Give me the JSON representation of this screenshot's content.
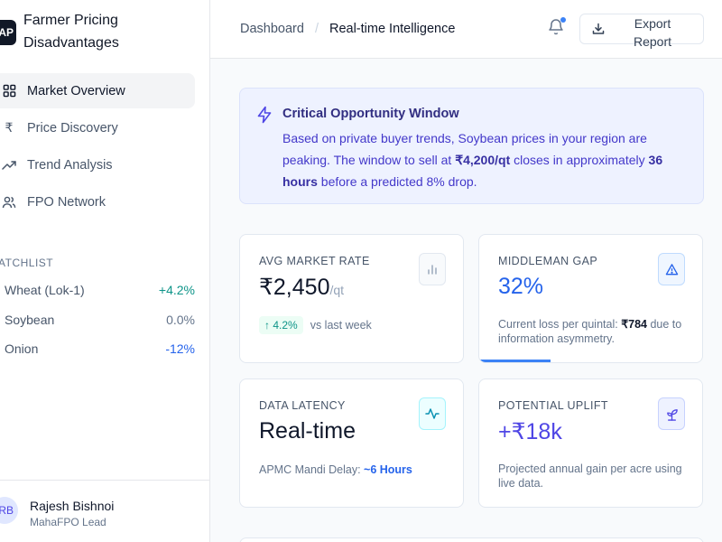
{
  "brand": {
    "logo": "AP",
    "name": "Farmer Pricing Disadvantages"
  },
  "nav": [
    {
      "label": "Market Overview",
      "icon": "grid-icon",
      "active": true
    },
    {
      "label": "Price Discovery",
      "icon": "rupee-icon",
      "active": false
    },
    {
      "label": "Trend Analysis",
      "icon": "trending-up-icon",
      "active": false
    },
    {
      "label": "FPO Network",
      "icon": "users-icon",
      "active": false
    }
  ],
  "watchlist": {
    "title": "ATCHLIST",
    "items": [
      {
        "name": "Wheat (Lok-1)",
        "change": "+4.2%"
      },
      {
        "name": "Soybean",
        "change": "0.0%"
      },
      {
        "name": "Onion",
        "change": "-12%"
      }
    ]
  },
  "user": {
    "initials": "RB",
    "name": "Rajesh Bishnoi",
    "role": "MahaFPO Lead"
  },
  "header": {
    "breadcrumb_home": "Dashboard",
    "breadcrumb_sep": "/",
    "breadcrumb_current": "Real-time Intelligence",
    "export_label": "Export Report"
  },
  "alert": {
    "title": "Critical Opportunity Window",
    "body_1": "Based on private buyer trends, Soybean prices in your region are peaking. The window to sell at ",
    "price": "₹4,200/qt",
    "body_2": " closes in approximately ",
    "hours": "36 hours",
    "body_3": " before a predicted 8% drop."
  },
  "cards": {
    "avg_rate": {
      "label": "AVG MARKET RATE",
      "value": "₹2,450",
      "unit": "/qt",
      "trend": "↑ 4.2%",
      "trend_note": "vs last week"
    },
    "middleman": {
      "label": "MIDDLEMAN GAP",
      "value": "32%",
      "foot_1": "Current loss per quintal: ",
      "foot_amount": "₹784",
      "foot_2": " due to information asymmetry.",
      "gap_fraction": 0.32
    },
    "latency": {
      "label": "DATA LATENCY",
      "value": "Real-time",
      "foot_1": "APMC Mandi Delay: ",
      "foot_delay": "~6 Hours"
    },
    "uplift": {
      "label": "POTENTIAL UPLIFT",
      "value": "+₹18k",
      "foot": "Projected annual gain per acre using live data."
    }
  },
  "colors": {
    "accent": "#4f46e5",
    "positive": "#0d9488",
    "negative": "#2563eb"
  }
}
